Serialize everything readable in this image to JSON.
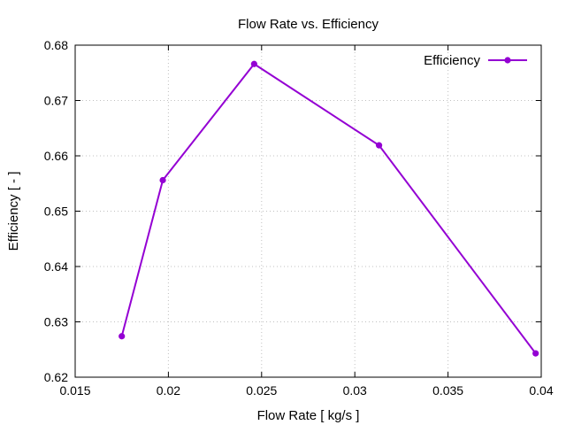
{
  "chart_data": {
    "type": "line",
    "title": "Flow Rate  vs. Efficiency",
    "xlabel": "Flow Rate [ kg/s ]",
    "ylabel": "Efficiency [ - ]",
    "xlim": [
      0.015,
      0.04
    ],
    "ylim": [
      0.62,
      0.68
    ],
    "xticks": [
      0.015,
      0.02,
      0.025,
      0.03,
      0.035,
      0.04
    ],
    "xtick_labels": [
      "0.015",
      "0.02",
      "0.025",
      "0.03",
      "0.035",
      "0.04"
    ],
    "yticks": [
      0.62,
      0.63,
      0.64,
      0.65,
      0.66,
      0.67,
      0.68
    ],
    "ytick_labels": [
      "0.62",
      "0.63",
      "0.64",
      "0.65",
      "0.66",
      "0.67",
      "0.68"
    ],
    "grid": true,
    "legend_position": "top-right",
    "series": [
      {
        "name": "Efficiency",
        "color": "#9400d3",
        "x": [
          0.0175,
          0.0197,
          0.0246,
          0.0313,
          0.0397
        ],
        "y": [
          0.6274,
          0.6556,
          0.6766,
          0.6619,
          0.6243
        ]
      }
    ]
  }
}
